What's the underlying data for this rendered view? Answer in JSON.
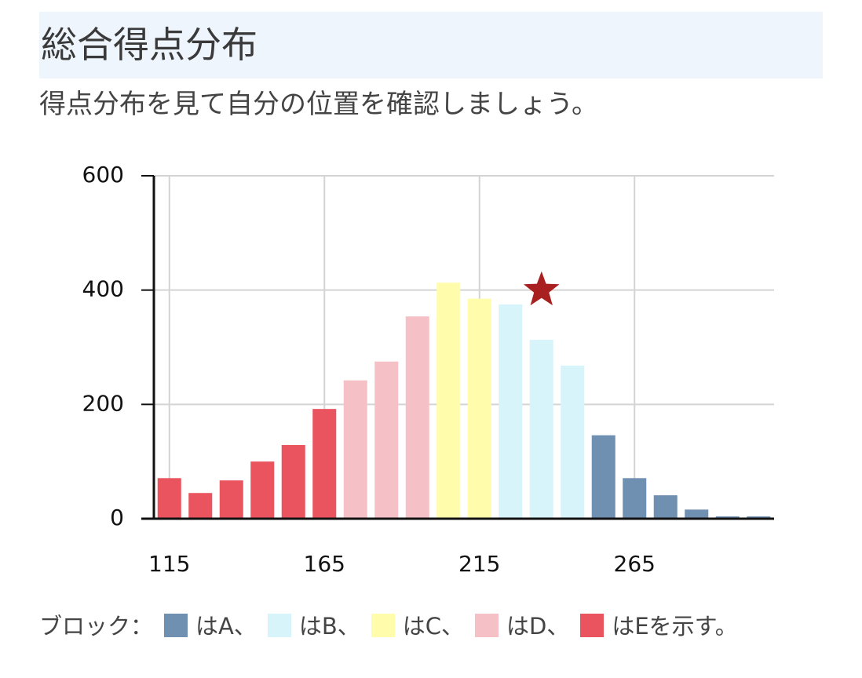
{
  "title": "総合得点分布",
  "subtitle": "得点分布を見て自分の位置を確認しましょう。",
  "chart_data": {
    "type": "histogram",
    "bins": [
      110,
      120,
      130,
      140,
      150,
      160,
      170,
      180,
      190,
      200,
      210,
      220,
      230,
      240,
      250,
      260,
      270,
      280,
      290,
      300,
      310
    ],
    "counts": [
      71,
      45,
      67,
      100,
      129,
      192,
      242,
      275,
      354,
      413,
      385,
      375,
      313,
      268,
      146,
      71,
      41,
      16,
      4,
      4
    ],
    "colors": [
      "#e9545e",
      "#e9545e",
      "#e9545e",
      "#e9545e",
      "#e9545e",
      "#e9545e",
      "#f5c1c7",
      "#f5c1c7",
      "#f5c1c7",
      "#fffcac",
      "#fffcac",
      "#d8f4fb",
      "#d8f4fb",
      "#d8f4fb",
      "#7090b2",
      "#7090b2",
      "#7090b2",
      "#7090b2",
      "#7090b2",
      "#7090b2"
    ],
    "xlim": [
      110,
      310
    ],
    "xticks": [
      115,
      165,
      215,
      265
    ],
    "ylim": [
      0,
      600
    ],
    "yticks": [
      0,
      200,
      400,
      600
    ],
    "grid": true,
    "marker": {
      "x": 235,
      "y": 400,
      "color": "#a8201f"
    },
    "legend_prefix": "ブロック：",
    "legend": [
      {
        "label": "はA、",
        "color": "#7090b2"
      },
      {
        "label": "はB、",
        "color": "#d8f4fb"
      },
      {
        "label": "はC、",
        "color": "#fffcac"
      },
      {
        "label": "はD、",
        "color": "#f5c1c7"
      },
      {
        "label": "はEを示す。",
        "color": "#e9545e"
      }
    ]
  }
}
